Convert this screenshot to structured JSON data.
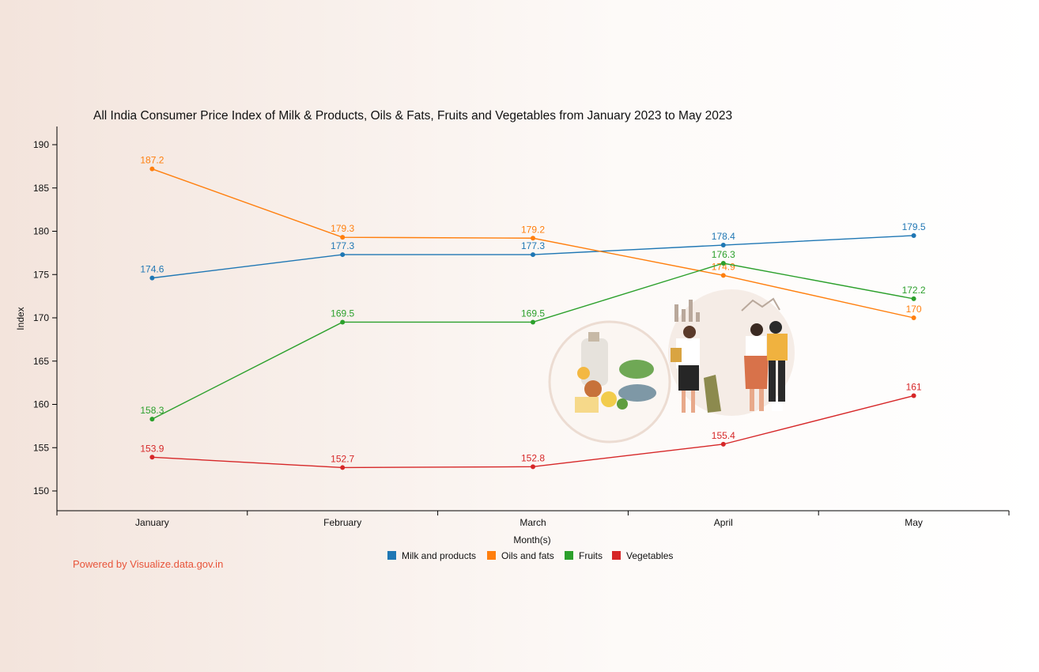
{
  "chart_data": {
    "type": "line",
    "title": "All India Consumer Price Index of Milk & Products, Oils & Fats, Fruits and Vegetables from January 2023 to May 2023",
    "xlabel": "Month(s)",
    "ylabel": "Index",
    "categories": [
      "January",
      "February",
      "March",
      "April",
      "May"
    ],
    "ylim": [
      148,
      192
    ],
    "yticks": [
      150,
      155,
      160,
      165,
      170,
      175,
      180,
      185,
      190
    ],
    "grid": false,
    "legend_position": "bottom",
    "series": [
      {
        "name": "Milk and products",
        "color": "#1f77b4",
        "values": [
          174.6,
          177.3,
          177.3,
          178.4,
          179.5
        ],
        "labels": [
          "174.6",
          "177.3",
          "177.3",
          "178.4",
          "179.5"
        ]
      },
      {
        "name": "Oils and fats",
        "color": "#ff7f0e",
        "values": [
          187.2,
          179.3,
          179.2,
          174.9,
          170
        ],
        "labels": [
          "187.2",
          "179.3",
          "179.2",
          "174.9",
          "170"
        ]
      },
      {
        "name": "Fruits",
        "color": "#2ca02c",
        "values": [
          158.3,
          169.5,
          169.5,
          176.3,
          172.2
        ],
        "labels": [
          "158.3",
          "169.5",
          "169.5",
          "176.3",
          "172.2"
        ]
      },
      {
        "name": "Vegetables",
        "color": "#d62728",
        "values": [
          153.9,
          152.7,
          152.8,
          155.4,
          161
        ],
        "labels": [
          "153.9",
          "152.7",
          "152.8",
          "155.4",
          "161"
        ]
      }
    ]
  },
  "footer": {
    "powered_by": "Powered by Visualize.data.gov.in"
  },
  "illustration": {
    "icon": "food-and-shoppers-illustration"
  }
}
